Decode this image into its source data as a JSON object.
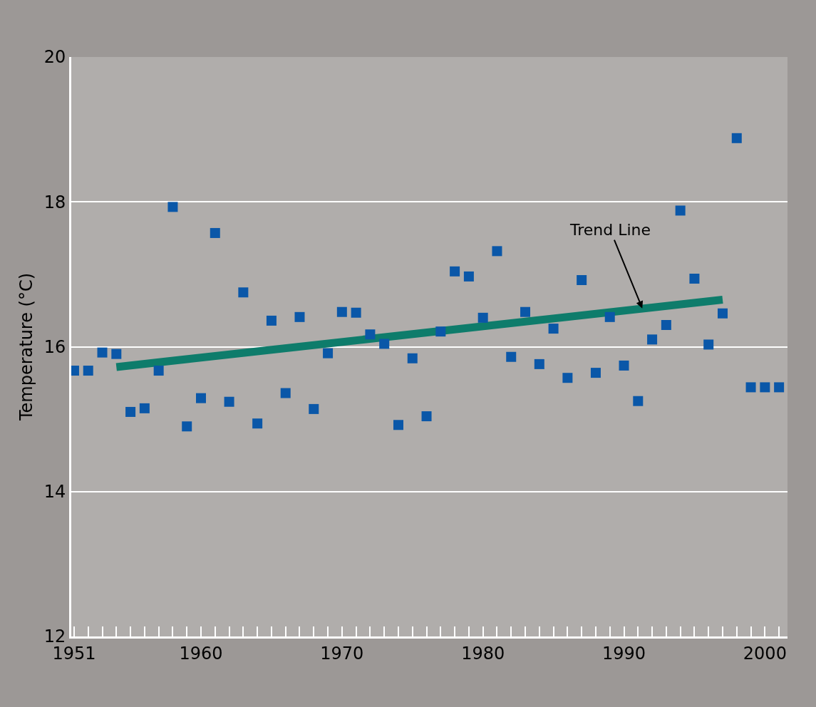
{
  "chart_data": {
    "type": "scatter",
    "ylabel": "Temperature (°C)",
    "x": [
      1951,
      1952,
      1953,
      1954,
      1955,
      1956,
      1957,
      1958,
      1959,
      1960,
      1961,
      1962,
      1963,
      1964,
      1965,
      1966,
      1967,
      1968,
      1969,
      1970,
      1971,
      1972,
      1973,
      1974,
      1975,
      1976,
      1977,
      1978,
      1979,
      1980,
      1981,
      1982,
      1983,
      1984,
      1985,
      1986,
      1987,
      1988,
      1989,
      1990,
      1991,
      1992,
      1993,
      1994,
      1995,
      1996,
      1997,
      1998,
      1999,
      2000,
      2001
    ],
    "series": [
      {
        "color": "#0a57a8",
        "marker": "square",
        "values": [
          15.67,
          15.67,
          15.92,
          15.9,
          15.1,
          15.15,
          15.67,
          17.93,
          14.9,
          15.29,
          17.57,
          15.24,
          16.75,
          14.94,
          16.36,
          15.36,
          16.41,
          15.14,
          15.91,
          16.48,
          16.47,
          16.17,
          16.04,
          14.92,
          15.84,
          15.04,
          16.21,
          17.04,
          16.97,
          16.4,
          17.32,
          15.86,
          16.48,
          15.76,
          16.25,
          15.57,
          16.92,
          15.64,
          16.41,
          15.74,
          15.25,
          16.1,
          16.3,
          17.88,
          16.94,
          16.03,
          16.46,
          18.88,
          15.44,
          15.44,
          15.44
        ]
      },
      {
        "type": "line",
        "color": "#0e7c6b",
        "x": [
          1954,
          1997
        ],
        "values": [
          15.72,
          16.65
        ]
      }
    ],
    "annotations": [
      {
        "text": "Trend Line",
        "x": 1991.3,
        "y": 16.53
      }
    ],
    "xlim": [
      1950.8,
      2001.6
    ],
    "ylim": [
      12,
      20
    ],
    "xticks": [
      1951,
      {
        "value": 1952,
        "label": null
      },
      {
        "value": 1953,
        "label": null
      },
      {
        "value": 1954,
        "label": null
      },
      {
        "value": 1955,
        "label": null
      },
      {
        "value": 1956,
        "label": null
      },
      {
        "value": 1957,
        "label": null
      },
      {
        "value": 1958,
        "label": null
      },
      {
        "value": 1959,
        "label": null
      },
      1960,
      {
        "value": 1961,
        "label": null
      },
      {
        "value": 1962,
        "label": null
      },
      {
        "value": 1963,
        "label": null
      },
      {
        "value": 1964,
        "label": null
      },
      {
        "value": 1965,
        "label": null
      },
      {
        "value": 1966,
        "label": null
      },
      {
        "value": 1967,
        "label": null
      },
      {
        "value": 1968,
        "label": null
      },
      {
        "value": 1969,
        "label": null
      },
      1970,
      {
        "value": 1971,
        "label": null
      },
      {
        "value": 1972,
        "label": null
      },
      {
        "value": 1973,
        "label": null
      },
      {
        "value": 1974,
        "label": null
      },
      {
        "value": 1975,
        "label": null
      },
      {
        "value": 1976,
        "label": null
      },
      {
        "value": 1977,
        "label": null
      },
      {
        "value": 1978,
        "label": null
      },
      {
        "value": 1979,
        "label": null
      },
      1980,
      {
        "value": 1981,
        "label": null
      },
      {
        "value": 1982,
        "label": null
      },
      {
        "value": 1983,
        "label": null
      },
      {
        "value": 1984,
        "label": null
      },
      {
        "value": 1985,
        "label": null
      },
      {
        "value": 1986,
        "label": null
      },
      {
        "value": 1987,
        "label": null
      },
      {
        "value": 1988,
        "label": null
      },
      {
        "value": 1989,
        "label": null
      },
      1990,
      {
        "value": 1991,
        "label": null
      },
      {
        "value": 1992,
        "label": null
      },
      {
        "value": 1993,
        "label": null
      },
      {
        "value": 1994,
        "label": null
      },
      {
        "value": 1995,
        "label": null
      },
      {
        "value": 1996,
        "label": null
      },
      {
        "value": 1997,
        "label": null
      },
      {
        "value": 1998,
        "label": null
      },
      {
        "value": 1999,
        "label": null
      },
      2000,
      {
        "value": 2001,
        "label": null
      }
    ],
    "yticks": [
      12,
      14,
      16,
      18,
      20
    ],
    "grid": "y"
  }
}
